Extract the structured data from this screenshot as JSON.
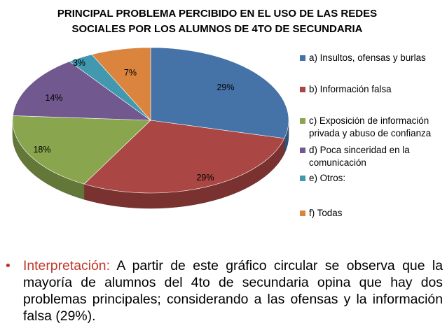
{
  "chart_data": {
    "type": "pie",
    "title_lines": [
      "PRINCIPAL PROBLEMA PERCIBIDO EN EL USO DE LAS REDES",
      "SOCIALES POR LOS ALUMNOS DE 4TO DE SECUNDARIA"
    ],
    "categories": [
      "a) Insultos, ofensas y burlas",
      "b) Información falsa",
      "c) Exposición de información privada y abuso de confianza",
      "d) Poca sinceridad en la comunicación",
      "e) Otros:",
      "f) Todas"
    ],
    "values": [
      29,
      29,
      18,
      14,
      3,
      7
    ],
    "data_labels": [
      "29%",
      "29%",
      "18%",
      "14%",
      "3%",
      "7%"
    ],
    "colors": [
      "#4572a7",
      "#aa4643",
      "#89a54e",
      "#71588f",
      "#4198af",
      "#db843d"
    ],
    "legend_position": "right",
    "style": "3d"
  },
  "interpretation": {
    "bullet": "•",
    "lead": "Interpretación:",
    "text": " A partir de este gráfico circular se observa que la mayoría de alumnos del 4to de secundaria opina que hay dos problemas principales; considerando  a las ofensas y la información falsa (29%)."
  }
}
